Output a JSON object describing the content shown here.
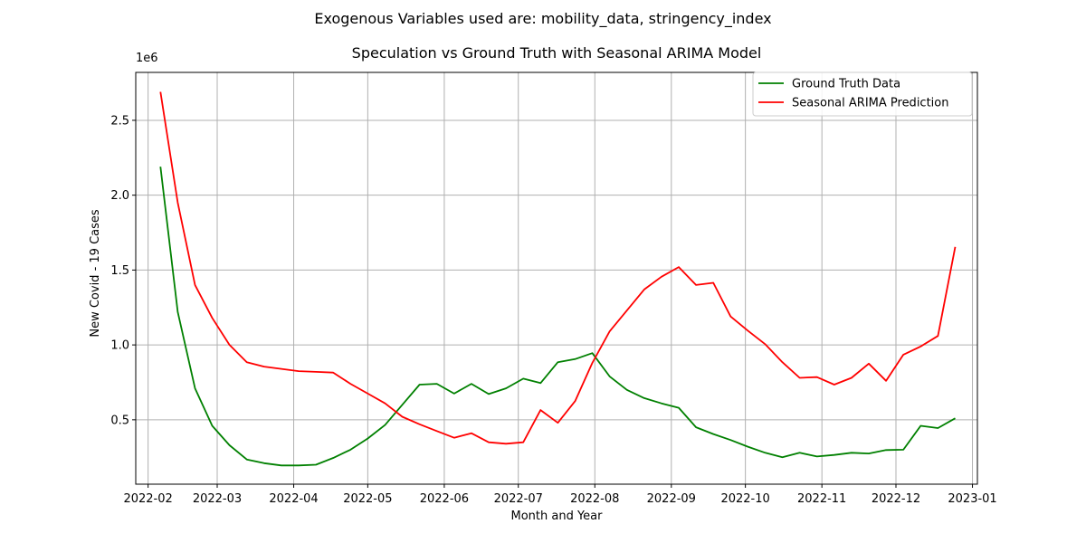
{
  "suptitle": "Exogenous Variables used are: mobility_data, stringency_index",
  "chart_data": {
    "type": "line",
    "title": "Speculation vs Ground Truth with Seasonal ARIMA Model",
    "xlabel": "Month and Year",
    "ylabel": "New Covid - 19 Cases",
    "y_offset_label": "1e6",
    "xlim": [
      "2022-01-27",
      "2023-01-03"
    ],
    "ylim": [
      0.07,
      2.82
    ],
    "grid": true,
    "legend_position": "top-right",
    "x_ticks": [
      "2022-02-01",
      "2022-03-01",
      "2022-04-01",
      "2022-05-01",
      "2022-06-01",
      "2022-07-01",
      "2022-08-01",
      "2022-09-01",
      "2022-10-01",
      "2022-11-01",
      "2022-12-01",
      "2023-01-01"
    ],
    "x_tick_labels": [
      "2022-02",
      "2022-03",
      "2022-04",
      "2022-05",
      "2022-06",
      "2022-07",
      "2022-08",
      "2022-09",
      "2022-10",
      "2022-11",
      "2022-12",
      "2023-01"
    ],
    "y_ticks": [
      0.5,
      1.0,
      1.5,
      2.0,
      2.5
    ],
    "y_tick_labels": [
      "0.5",
      "1.0",
      "1.5",
      "2.0",
      "2.5"
    ],
    "x": [
      "2022-02-06",
      "2022-02-13",
      "2022-02-20",
      "2022-02-27",
      "2022-03-06",
      "2022-03-13",
      "2022-03-20",
      "2022-03-27",
      "2022-04-03",
      "2022-04-10",
      "2022-04-17",
      "2022-04-24",
      "2022-05-01",
      "2022-05-08",
      "2022-05-15",
      "2022-05-22",
      "2022-05-29",
      "2022-06-05",
      "2022-06-12",
      "2022-06-19",
      "2022-06-26",
      "2022-07-03",
      "2022-07-10",
      "2022-07-17",
      "2022-07-24",
      "2022-07-31",
      "2022-08-07",
      "2022-08-14",
      "2022-08-21",
      "2022-08-28",
      "2022-09-04",
      "2022-09-11",
      "2022-09-18",
      "2022-09-25",
      "2022-10-02",
      "2022-10-09",
      "2022-10-16",
      "2022-10-23",
      "2022-10-30",
      "2022-11-06",
      "2022-11-13",
      "2022-11-20",
      "2022-11-27",
      "2022-12-04",
      "2022-12-11",
      "2022-12-18",
      "2022-12-25"
    ],
    "series": [
      {
        "name": "Ground Truth Data",
        "color": "#008000",
        "values": [
          2.19,
          1.22,
          0.71,
          0.46,
          0.33,
          0.235,
          0.21,
          0.195,
          0.195,
          0.2,
          0.245,
          0.3,
          0.375,
          0.465,
          0.6,
          0.735,
          0.74,
          0.675,
          0.74,
          0.672,
          0.71,
          0.775,
          0.745,
          0.885,
          0.905,
          0.945,
          0.79,
          0.7,
          0.645,
          0.61,
          0.58,
          0.45,
          0.405,
          0.365,
          0.32,
          0.28,
          0.25,
          0.28,
          0.255,
          0.265,
          0.28,
          0.275,
          0.298,
          0.3,
          0.46,
          0.445,
          0.51
        ]
      },
      {
        "name": "Seasonal ARIMA Prediction",
        "color": "#ff0000",
        "values": [
          2.69,
          1.95,
          1.4,
          1.18,
          1.0,
          0.885,
          0.855,
          0.84,
          0.825,
          0.82,
          0.815,
          0.74,
          0.675,
          0.61,
          0.52,
          0.47,
          0.425,
          0.38,
          0.41,
          0.35,
          0.34,
          0.35,
          0.565,
          0.48,
          0.625,
          0.88,
          1.09,
          1.23,
          1.37,
          1.455,
          1.52,
          1.4,
          1.415,
          1.19,
          1.095,
          1.005,
          0.885,
          0.78,
          0.785,
          0.735,
          0.78,
          0.875,
          0.76,
          0.935,
          0.99,
          1.06,
          1.655
        ]
      }
    ]
  }
}
